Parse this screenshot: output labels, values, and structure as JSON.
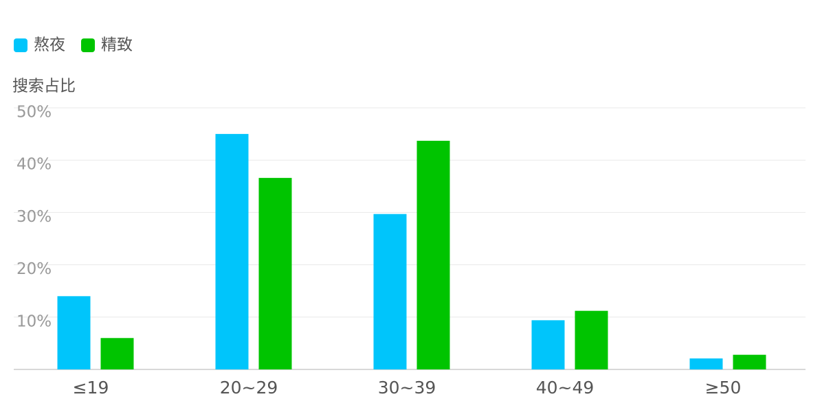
{
  "chart_data": {
    "type": "bar",
    "y_label": "搜索占比",
    "categories": [
      "≤19",
      "20~29",
      "30~39",
      "40~49",
      "≥50"
    ],
    "series": [
      {
        "name": "熬夜",
        "color": "#00c5fb",
        "values": [
          14,
          45,
          29.7,
          9.4,
          2.1
        ]
      },
      {
        "name": "精致",
        "color": "#00c400",
        "values": [
          6,
          36.6,
          43.7,
          11.2,
          2.8
        ]
      }
    ],
    "ylim": [
      0,
      50
    ],
    "yticks": [
      {
        "value": 10,
        "label": "10%"
      },
      {
        "value": 20,
        "label": "20%"
      },
      {
        "value": 30,
        "label": "30%"
      },
      {
        "value": 40,
        "label": "40%"
      },
      {
        "value": 50,
        "label": "50%"
      }
    ],
    "grid": true,
    "legend": "top-left"
  }
}
